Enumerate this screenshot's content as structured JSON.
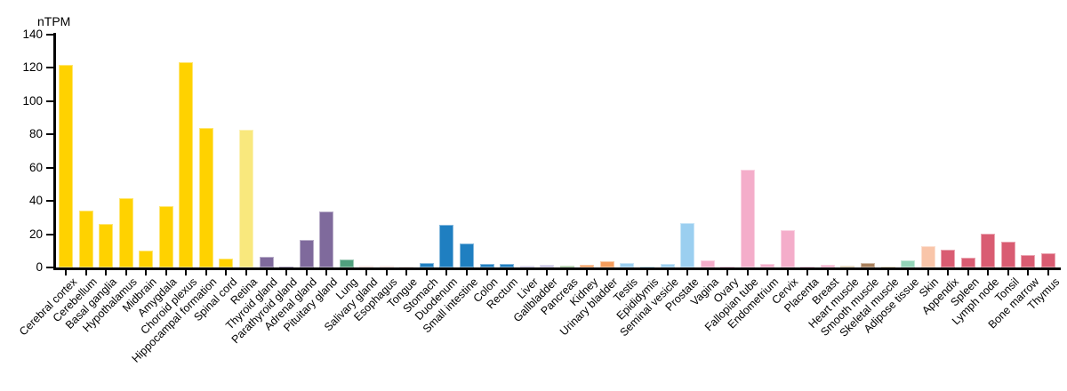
{
  "chart_data": {
    "type": "bar",
    "title": "nTPM",
    "ylabel": "nTPM",
    "xlabel": "",
    "ylim": [
      0,
      140
    ],
    "yticks": [
      0,
      20,
      40,
      60,
      80,
      100,
      120,
      140
    ],
    "grid": false,
    "legend": null,
    "axis_color": "#000000",
    "background_color": "#ffffff",
    "categories": [
      "Cerebral cortex",
      "Cerebellum",
      "Basal ganglia",
      "Hypothalamus",
      "Midbrain",
      "Amygdala",
      "Choroid plexus",
      "Hippocampal formation",
      "Spinal cord",
      "Retina",
      "Thyroid gland",
      "Parathyroid gland",
      "Adrenal gland",
      "Pituitary gland",
      "Lung",
      "Salivary gland",
      "Esophagus",
      "Tongue",
      "Stomach",
      "Duodenum",
      "Small intestine",
      "Colon",
      "Rectum",
      "Liver",
      "Gallbladder",
      "Pancreas",
      "Kidney",
      "Urinary bladder",
      "Testis",
      "Epididymis",
      "Seminal vesicle",
      "Prostate",
      "Vagina",
      "Ovary",
      "Fallopian tube",
      "Endometrium",
      "Cervix",
      "Placenta",
      "Breast",
      "Heart muscle",
      "Smooth muscle",
      "Skeletal muscle",
      "Adipose tissue",
      "Skin",
      "Appendix",
      "Spleen",
      "Lymph node",
      "Tonsil",
      "Bone marrow",
      "Thymus"
    ],
    "values": [
      121.9,
      34.1,
      26.2,
      41.9,
      10.2,
      36.8,
      123.7,
      84.0,
      5.5,
      83.0,
      6.5,
      0.5,
      16.6,
      33.8,
      4.9,
      1.2,
      1.2,
      0.8,
      2.9,
      25.7,
      14.5,
      2.1,
      2.4,
      1.0,
      1.6,
      1.0,
      1.6,
      3.9,
      2.8,
      0.6,
      1.9,
      26.6,
      4.2,
      0.6,
      59.0,
      2.0,
      22.4,
      0.4,
      1.8,
      0.9,
      2.6,
      0.5,
      4.2,
      13.0,
      10.7,
      6.0,
      20.5,
      15.6,
      7.5,
      8.7
    ],
    "colors": [
      "#FFD200",
      "#FFD200",
      "#FFD200",
      "#FFD200",
      "#FFD200",
      "#FFD200",
      "#FFD200",
      "#FFD200",
      "#FFD200",
      "#F9E87D",
      "#7F6A9C",
      "#7F6A9C",
      "#7F6A9C",
      "#7F6A9C",
      "#50A07E",
      "#F4D7D4",
      "#F4D7D4",
      "#F4D7D4",
      "#1F7FC1",
      "#1F7FC1",
      "#1F7FC1",
      "#1F7FC1",
      "#1F7FC1",
      "#C5C0E2",
      "#C5C0E2",
      "#8CBA86",
      "#F59C5B",
      "#F59C5B",
      "#9BCFF0",
      "#9BCFF0",
      "#9BCFF0",
      "#9BCFF0",
      "#F4ADCA",
      "#F4ADCA",
      "#F4ADCA",
      "#F4ADCA",
      "#F4ADCA",
      "#F4ADCA",
      "#F4ADCA",
      "#D6C29C",
      "#A8805C",
      "#D6C29C",
      "#93D5B9",
      "#F9C5A9",
      "#D95C72",
      "#D95C72",
      "#D95C72",
      "#D95C72",
      "#D95C72",
      "#D95C72"
    ]
  }
}
